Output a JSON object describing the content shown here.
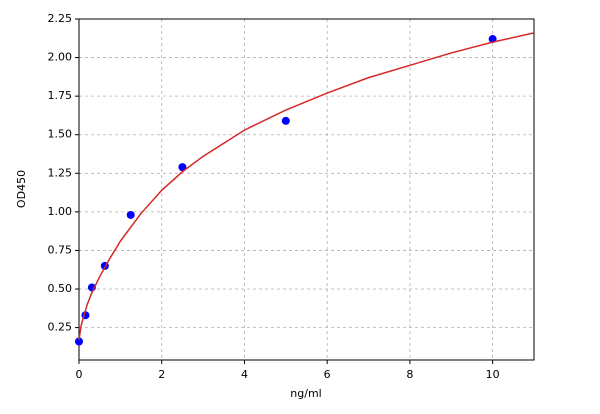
{
  "chart_data": {
    "type": "scatter",
    "xlabel": "ng/ml",
    "ylabel": "OD450",
    "series": [
      {
        "color": "#0000ff",
        "x": [
          0,
          0.156,
          0.3125,
          0.625,
          1.25,
          2.5,
          5,
          10
        ],
        "values": [
          0.16,
          0.33,
          0.51,
          0.65,
          0.98,
          1.29,
          1.59,
          2.12
        ]
      },
      {
        "color": "#d62728",
        "line": true,
        "x": [
          0,
          0.05,
          0.1,
          0.2,
          0.3,
          0.5,
          0.75,
          1,
          1.5,
          2,
          2.5,
          3,
          4,
          5,
          6,
          7,
          8,
          9,
          10,
          11
        ],
        "values": [
          0.17,
          0.26,
          0.31,
          0.4,
          0.47,
          0.58,
          0.7,
          0.81,
          0.99,
          1.14,
          1.26,
          1.36,
          1.53,
          1.66,
          1.77,
          1.87,
          1.95,
          2.03,
          2.1,
          2.16
        ]
      }
    ],
    "xlim": [
      0,
      11
    ],
    "xticks": [
      0,
      2,
      4,
      6,
      8,
      10
    ],
    "ylim": [
      0.04,
      2.25
    ],
    "yticks": [
      0.25,
      {
        "value": 0.5,
        "label": "0.50"
      },
      0.75,
      {
        "value": 1,
        "label": "1.00"
      },
      1.25,
      {
        "value": 1.5,
        "label": "1.50"
      },
      1.75,
      {
        "value": 2,
        "label": "2.00"
      },
      2.25
    ],
    "grid": true
  }
}
